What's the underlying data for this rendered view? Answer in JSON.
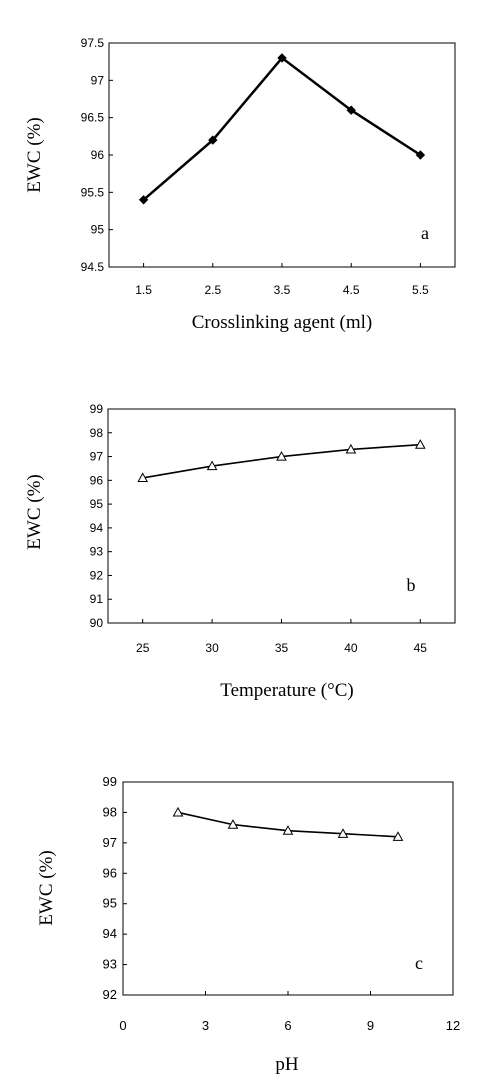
{
  "chart_data": [
    {
      "type": "line",
      "panel_label": "a",
      "xlabel": "Crosslinking agent (ml)",
      "ylabel": "EWC (%)",
      "x": [
        1.5,
        2.5,
        3.5,
        4.5,
        5.5
      ],
      "values": [
        95.4,
        96.2,
        97.3,
        96.6,
        96.0
      ],
      "xticks": [
        "1.5",
        "2.5",
        "3.5",
        "4.5",
        "5.5"
      ],
      "yticks": [
        "94.5",
        "95",
        "95.5",
        "96",
        "96.5",
        "97",
        "97.5"
      ],
      "xlim": [
        1,
        6
      ],
      "ylim": [
        94.5,
        97.5
      ],
      "marker": "diamond-filled",
      "grid": false,
      "line_color": "#000000"
    },
    {
      "type": "line",
      "panel_label": "b",
      "xlabel": "Temperature (°C)",
      "ylabel": "EWC (%)",
      "x": [
        25,
        30,
        35,
        40,
        45
      ],
      "values": [
        96.1,
        96.6,
        97.0,
        97.3,
        97.5
      ],
      "xticks": [
        "25",
        "30",
        "35",
        "40",
        "45"
      ],
      "yticks": [
        "90",
        "91",
        "92",
        "93",
        "94",
        "95",
        "96",
        "97",
        "98",
        "99"
      ],
      "xlim": [
        22.5,
        47.5
      ],
      "ylim": [
        90,
        99
      ],
      "marker": "triangle-open",
      "grid": false,
      "line_color": "#000000"
    },
    {
      "type": "line",
      "panel_label": "c",
      "xlabel": "pH",
      "ylabel": "EWC (%)",
      "x": [
        2,
        4,
        6,
        8,
        10
      ],
      "values": [
        98.0,
        97.6,
        97.4,
        97.3,
        97.2
      ],
      "xticks": [
        "0",
        "3",
        "6",
        "9",
        "12"
      ],
      "yticks": [
        "92",
        "93",
        "94",
        "95",
        "96",
        "97",
        "98",
        "99"
      ],
      "xlim": [
        0,
        12
      ],
      "ylim": [
        92,
        99
      ],
      "marker": "triangle-open",
      "grid": false,
      "line_color": "#000000"
    }
  ]
}
